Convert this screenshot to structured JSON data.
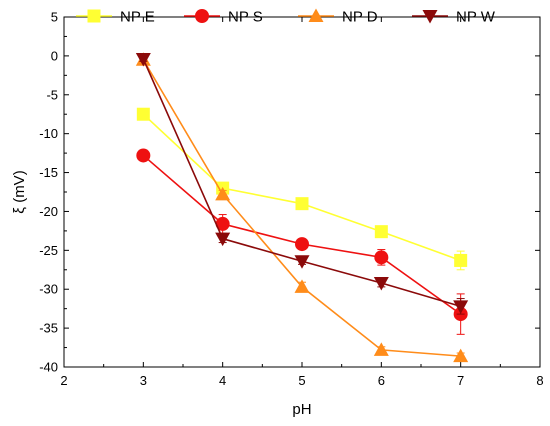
{
  "chart_data": {
    "type": "line",
    "title": "",
    "xlabel": "pH",
    "ylabel": "ξ (mV)",
    "xlim": [
      2,
      8
    ],
    "ylim": [
      -40,
      5
    ],
    "xticks": [
      2,
      3,
      4,
      5,
      6,
      7,
      8
    ],
    "yticks": [
      5,
      0,
      -5,
      -10,
      -15,
      -20,
      -25,
      -30,
      -35,
      -40
    ],
    "grid": false,
    "legend_position": "top",
    "series": [
      {
        "name": "NP E",
        "color": "#ffff33",
        "marker": "square",
        "x": [
          3,
          4,
          5,
          6,
          7
        ],
        "y": [
          -7.5,
          -17.0,
          -19.0,
          -22.6,
          -26.3
        ],
        "err": [
          0.4,
          0.5,
          0.4,
          0.5,
          1.2
        ]
      },
      {
        "name": "NP S",
        "color": "#ee1111",
        "marker": "circle",
        "x": [
          3,
          4,
          5,
          6,
          7
        ],
        "y": [
          -12.8,
          -21.6,
          -24.2,
          -25.9,
          -33.2
        ],
        "err": [
          0.3,
          1.2,
          0.5,
          1.0,
          2.6
        ]
      },
      {
        "name": "NP D",
        "color": "#ff8c1a",
        "marker": "triangle-up",
        "x": [
          3,
          4,
          5,
          6,
          7
        ],
        "y": [
          -0.5,
          -17.8,
          -29.7,
          -37.8,
          -38.6
        ],
        "err": [
          0.3,
          0.5,
          0.6,
          0.4,
          0.4
        ]
      },
      {
        "name": "NP W",
        "color": "#8b0a0a",
        "marker": "triangle-down",
        "x": [
          3,
          4,
          5,
          6,
          7
        ],
        "y": [
          -0.4,
          -23.5,
          -26.4,
          -29.2,
          -32.2
        ],
        "err": [
          0.3,
          0.5,
          0.4,
          0.5,
          1.0
        ]
      }
    ]
  }
}
